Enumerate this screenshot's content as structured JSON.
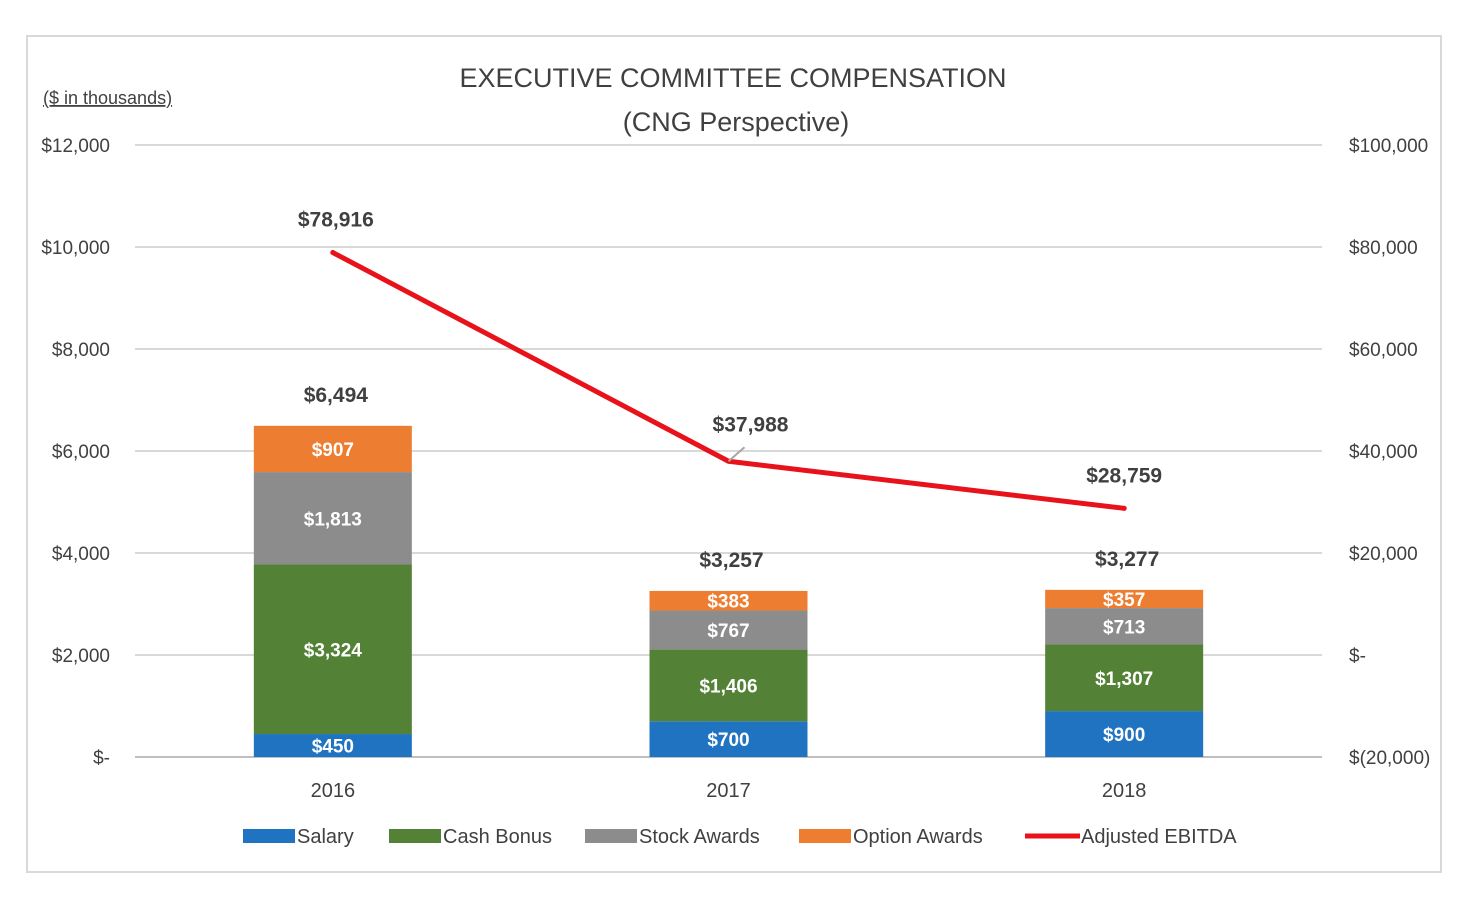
{
  "chart_data": {
    "type": "bar",
    "stacked": true,
    "title": "EXECUTIVE COMMITTEE COMPENSATION",
    "subtitle": "(CNG Perspective)",
    "units_note": "($ in thousands)",
    "categories": [
      "2016",
      "2017",
      "2018"
    ],
    "series": [
      {
        "name": "Salary",
        "color": "#1f73c0",
        "values": [
          450,
          700,
          900
        ],
        "labels": [
          "$450",
          "$700",
          "$900"
        ]
      },
      {
        "name": "Cash Bonus",
        "color": "#538135",
        "values": [
          3324,
          1406,
          1307
        ],
        "labels": [
          "$3,324",
          "$1,406",
          "$1,307"
        ]
      },
      {
        "name": "Stock Awards",
        "color": "#8c8c8c",
        "values": [
          1813,
          767,
          713
        ],
        "labels": [
          "$1,813",
          "$767",
          "$713"
        ]
      },
      {
        "name": "Option Awards",
        "color": "#ed7d31",
        "values": [
          907,
          383,
          357
        ],
        "labels": [
          "$907",
          "$383",
          "$357"
        ]
      }
    ],
    "totals": [
      6494,
      3257,
      3277
    ],
    "total_labels": [
      "$6,494",
      "$3,257",
      "$3,277"
    ],
    "line_series": {
      "name": "Adjusted EBITDA",
      "color": "#e8121a",
      "axis": "secondary",
      "values": [
        78916,
        37988,
        28759
      ],
      "labels": [
        "$78,916",
        "$37,988",
        "$28,759"
      ]
    },
    "y_axis": {
      "min": 0,
      "max": 12000,
      "step": 2000,
      "tick_labels": [
        "$-",
        "$2,000",
        "$4,000",
        "$6,000",
        "$8,000",
        "$10,000",
        "$12,000"
      ]
    },
    "y2_axis": {
      "min": -20000,
      "max": 100000,
      "step": 20000,
      "tick_labels": [
        "$(20,000)",
        "$-",
        "$20,000",
        "$40,000",
        "$60,000",
        "$80,000",
        "$100,000"
      ]
    },
    "grid": true,
    "legend_position": "bottom"
  }
}
